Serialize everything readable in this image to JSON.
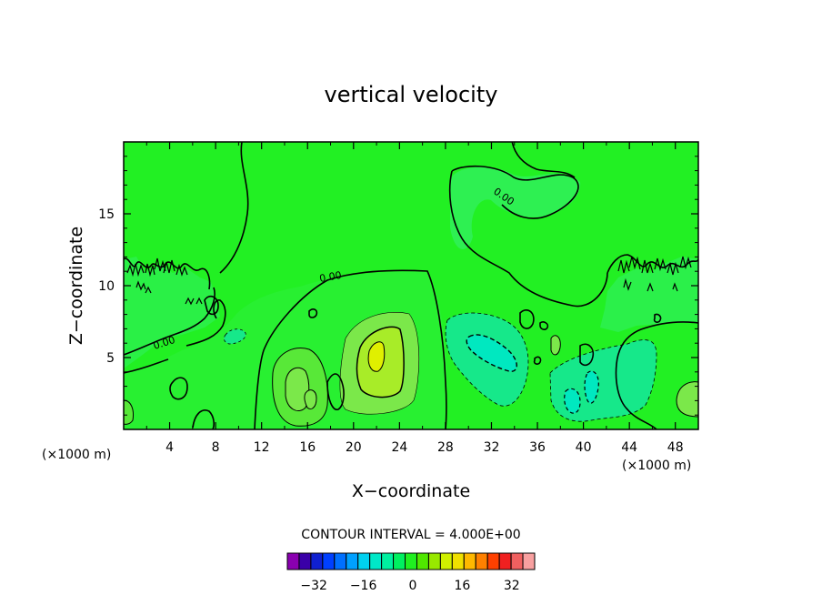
{
  "chart_data": {
    "type": "contour",
    "title": "vertical velocity",
    "xlabel": "X−coordinate",
    "ylabel": "Z−coordinate",
    "x_unit_left": "(×1000 m)",
    "x_unit_right": "(×1000 m)",
    "xlim": [
      0,
      50
    ],
    "ylim": [
      0,
      20
    ],
    "x_ticks": [
      4,
      8,
      12,
      16,
      20,
      24,
      28,
      32,
      36,
      40,
      44,
      48
    ],
    "y_ticks": [
      5,
      10,
      15
    ],
    "contour_interval_text": "CONTOUR INTERVAL = 4.000E+00",
    "contour_interval": 4.0,
    "contour_labels": [
      "0.00",
      "0.00",
      "0.00"
    ],
    "features": [
      {
        "kind": "updraft",
        "x": 22.5,
        "z": 5.0,
        "max": 12
      },
      {
        "kind": "updraft",
        "x": 15.5,
        "z": 3.0,
        "max": 8
      },
      {
        "kind": "downdraft",
        "x": 32.5,
        "z": 6.0,
        "min": -8
      },
      {
        "kind": "downdraft",
        "x": 40.0,
        "z": 2.0,
        "min": -8
      }
    ],
    "colorbar": {
      "colors": [
        "#8a00b0",
        "#3a00a8",
        "#1020d0",
        "#0040ff",
        "#0070ff",
        "#00a0ff",
        "#00d0f0",
        "#00e8c8",
        "#00f0a0",
        "#00f060",
        "#20f020",
        "#50e800",
        "#98e800",
        "#d0f000",
        "#f0e000",
        "#ffb800",
        "#ff8000",
        "#ff4000",
        "#f02020",
        "#f06060",
        "#f8a0a0"
      ],
      "tick_labels": [
        "−32",
        "−16",
        "0",
        "16",
        "32"
      ],
      "tick_values": [
        -32,
        -16,
        0,
        16,
        32
      ],
      "range": [
        -40,
        40
      ]
    }
  }
}
